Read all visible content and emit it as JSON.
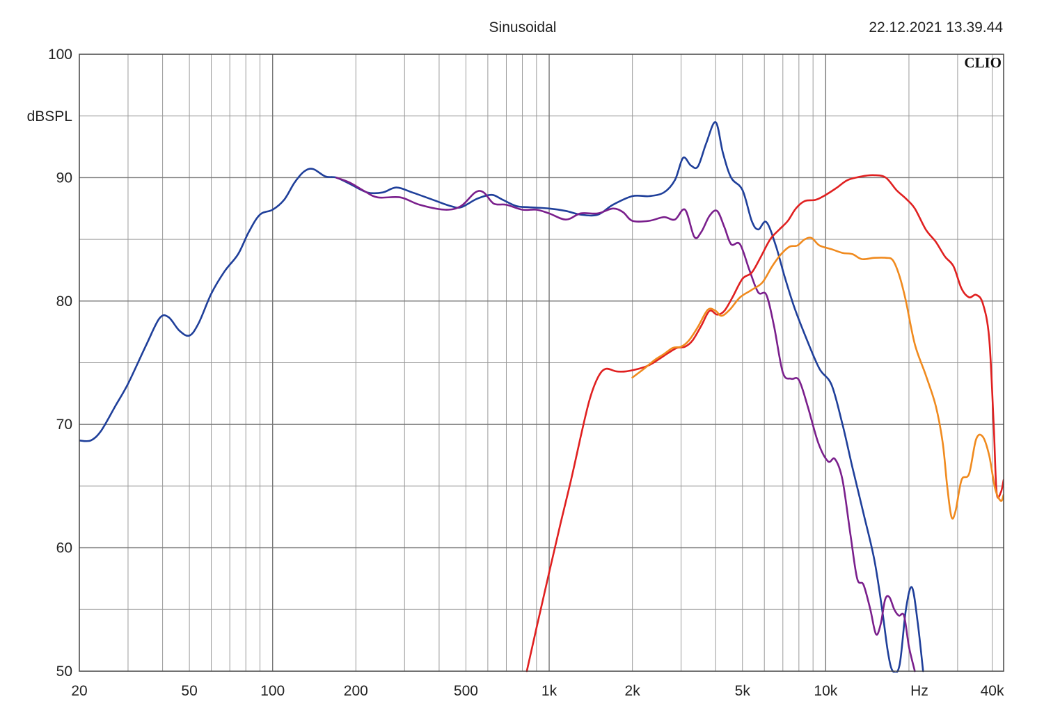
{
  "chart_data": {
    "type": "line",
    "title": "Sinusoidal",
    "timestamp": "22.12.2021 13.39.44",
    "brand": "CLIO",
    "ylabel": "dBSPL",
    "xunit": "Hz",
    "x_scale": "log",
    "xlim": [
      20,
      44000
    ],
    "ylim": [
      50,
      100
    ],
    "grid": true,
    "x_ticks": [
      {
        "value": 20,
        "label": "20"
      },
      {
        "value": 50,
        "label": "50"
      },
      {
        "value": 100,
        "label": "100"
      },
      {
        "value": 200,
        "label": "200"
      },
      {
        "value": 500,
        "label": "500"
      },
      {
        "value": 1000,
        "label": "1k"
      },
      {
        "value": 2000,
        "label": "2k"
      },
      {
        "value": 5000,
        "label": "5k"
      },
      {
        "value": 10000,
        "label": "10k"
      },
      {
        "value": 40000,
        "label": "40k"
      }
    ],
    "y_ticks": [
      {
        "value": 100,
        "label": "100"
      },
      {
        "value": 90,
        "label": "90"
      },
      {
        "value": 80,
        "label": "80"
      },
      {
        "value": 70,
        "label": "70"
      },
      {
        "value": 60,
        "label": "60"
      },
      {
        "value": 50,
        "label": "50"
      }
    ],
    "series": [
      {
        "color": "#1f3f9a",
        "points": [
          [
            20,
            68.7
          ],
          [
            22,
            68.7
          ],
          [
            24,
            69.5
          ],
          [
            27,
            71.5
          ],
          [
            30,
            73.3
          ],
          [
            35,
            76.5
          ],
          [
            39,
            78.6
          ],
          [
            42,
            78.7
          ],
          [
            46,
            77.6
          ],
          [
            50,
            77.2
          ],
          [
            54,
            78.2
          ],
          [
            60,
            80.6
          ],
          [
            67,
            82.4
          ],
          [
            75,
            83.8
          ],
          [
            82,
            85.6
          ],
          [
            90,
            87.0
          ],
          [
            100,
            87.4
          ],
          [
            110,
            88.2
          ],
          [
            120,
            89.6
          ],
          [
            130,
            90.5
          ],
          [
            140,
            90.7
          ],
          [
            155,
            90.1
          ],
          [
            170,
            90.0
          ],
          [
            190,
            89.5
          ],
          [
            220,
            88.8
          ],
          [
            250,
            88.8
          ],
          [
            280,
            89.2
          ],
          [
            320,
            88.8
          ],
          [
            380,
            88.2
          ],
          [
            440,
            87.7
          ],
          [
            480,
            87.6
          ],
          [
            550,
            88.3
          ],
          [
            620,
            88.6
          ],
          [
            680,
            88.2
          ],
          [
            760,
            87.7
          ],
          [
            850,
            87.6
          ],
          [
            1000,
            87.5
          ],
          [
            1150,
            87.3
          ],
          [
            1300,
            87.0
          ],
          [
            1500,
            87.0
          ],
          [
            1700,
            87.8
          ],
          [
            2000,
            88.5
          ],
          [
            2300,
            88.5
          ],
          [
            2600,
            88.8
          ],
          [
            2850,
            89.8
          ],
          [
            3050,
            91.6
          ],
          [
            3250,
            91.0
          ],
          [
            3450,
            90.9
          ],
          [
            3700,
            92.8
          ],
          [
            4000,
            94.5
          ],
          [
            4250,
            92.0
          ],
          [
            4550,
            90.0
          ],
          [
            5000,
            89.0
          ],
          [
            5400,
            86.5
          ],
          [
            5700,
            85.8
          ],
          [
            6100,
            86.4
          ],
          [
            6600,
            84.5
          ],
          [
            7100,
            82.0
          ],
          [
            7700,
            79.5
          ],
          [
            8500,
            77.0
          ],
          [
            9500,
            74.5
          ],
          [
            10500,
            73.2
          ],
          [
            11500,
            70.0
          ],
          [
            12500,
            66.5
          ],
          [
            13800,
            62.5
          ],
          [
            15000,
            59.0
          ],
          [
            16000,
            55.0
          ],
          [
            16800,
            51.5
          ],
          [
            17500,
            50.0
          ],
          [
            18500,
            50.5
          ],
          [
            19500,
            55.0
          ],
          [
            20500,
            56.8
          ],
          [
            21500,
            54.0
          ],
          [
            22500,
            50.0
          ]
        ]
      },
      {
        "color": "#7a1f8c",
        "points": [
          [
            170,
            90.0
          ],
          [
            190,
            89.6
          ],
          [
            215,
            88.9
          ],
          [
            240,
            88.4
          ],
          [
            290,
            88.4
          ],
          [
            340,
            87.8
          ],
          [
            420,
            87.4
          ],
          [
            480,
            87.7
          ],
          [
            540,
            88.8
          ],
          [
            580,
            88.8
          ],
          [
            630,
            87.9
          ],
          [
            700,
            87.8
          ],
          [
            800,
            87.4
          ],
          [
            900,
            87.4
          ],
          [
            1000,
            87.1
          ],
          [
            1150,
            86.6
          ],
          [
            1300,
            87.1
          ],
          [
            1500,
            87.1
          ],
          [
            1700,
            87.5
          ],
          [
            1850,
            87.2
          ],
          [
            2000,
            86.5
          ],
          [
            2300,
            86.5
          ],
          [
            2600,
            86.8
          ],
          [
            2850,
            86.6
          ],
          [
            3100,
            87.4
          ],
          [
            3350,
            85.2
          ],
          [
            3550,
            85.6
          ],
          [
            3800,
            86.9
          ],
          [
            4050,
            87.3
          ],
          [
            4300,
            86.0
          ],
          [
            4550,
            84.6
          ],
          [
            4900,
            84.6
          ],
          [
            5300,
            82.5
          ],
          [
            5700,
            80.7
          ],
          [
            6100,
            80.5
          ],
          [
            6500,
            78.0
          ],
          [
            7000,
            74.2
          ],
          [
            7500,
            73.7
          ],
          [
            8000,
            73.6
          ],
          [
            8600,
            71.5
          ],
          [
            9400,
            68.5
          ],
          [
            10200,
            67.0
          ],
          [
            10800,
            67.2
          ],
          [
            11500,
            65.5
          ],
          [
            12300,
            61.0
          ],
          [
            13000,
            57.5
          ],
          [
            13700,
            57.0
          ],
          [
            14500,
            55.0
          ],
          [
            15200,
            53.0
          ],
          [
            15800,
            53.8
          ],
          [
            16400,
            55.8
          ],
          [
            17000,
            56.0
          ],
          [
            17700,
            55.0
          ],
          [
            18400,
            54.5
          ],
          [
            19200,
            54.5
          ],
          [
            20000,
            52.0
          ],
          [
            21000,
            50.0
          ]
        ]
      },
      {
        "color": "#e02020",
        "points": [
          [
            830,
            50.0
          ],
          [
            900,
            53.5
          ],
          [
            1000,
            58.0
          ],
          [
            1100,
            62.0
          ],
          [
            1200,
            65.5
          ],
          [
            1300,
            69.0
          ],
          [
            1400,
            72.0
          ],
          [
            1500,
            73.8
          ],
          [
            1600,
            74.5
          ],
          [
            1750,
            74.3
          ],
          [
            1900,
            74.3
          ],
          [
            2100,
            74.5
          ],
          [
            2300,
            74.8
          ],
          [
            2500,
            75.3
          ],
          [
            2700,
            75.8
          ],
          [
            2900,
            76.2
          ],
          [
            3100,
            76.3
          ],
          [
            3300,
            76.8
          ],
          [
            3550,
            78.0
          ],
          [
            3800,
            79.2
          ],
          [
            4050,
            78.9
          ],
          [
            4300,
            79.2
          ],
          [
            4600,
            80.3
          ],
          [
            5000,
            81.8
          ],
          [
            5400,
            82.3
          ],
          [
            5800,
            83.5
          ],
          [
            6300,
            85.0
          ],
          [
            6800,
            85.8
          ],
          [
            7300,
            86.5
          ],
          [
            7800,
            87.5
          ],
          [
            8400,
            88.1
          ],
          [
            9200,
            88.2
          ],
          [
            10000,
            88.6
          ],
          [
            11000,
            89.2
          ],
          [
            12000,
            89.8
          ],
          [
            13500,
            90.1
          ],
          [
            15000,
            90.2
          ],
          [
            16500,
            90.0
          ],
          [
            18000,
            89.0
          ],
          [
            19500,
            88.3
          ],
          [
            21000,
            87.5
          ],
          [
            23000,
            85.8
          ],
          [
            25000,
            84.8
          ],
          [
            27000,
            83.6
          ],
          [
            29000,
            82.8
          ],
          [
            31000,
            81.0
          ],
          [
            33000,
            80.3
          ],
          [
            35000,
            80.5
          ],
          [
            37000,
            79.8
          ],
          [
            39000,
            77.0
          ],
          [
            40500,
            70.0
          ],
          [
            41500,
            64.5
          ],
          [
            43000,
            64.5
          ],
          [
            44000,
            65.5
          ]
        ]
      },
      {
        "color": "#f08a1e",
        "points": [
          [
            2000,
            73.8
          ],
          [
            2200,
            74.5
          ],
          [
            2400,
            75.2
          ],
          [
            2600,
            75.7
          ],
          [
            2800,
            76.2
          ],
          [
            3000,
            76.3
          ],
          [
            3200,
            76.8
          ],
          [
            3450,
            77.9
          ],
          [
            3750,
            79.3
          ],
          [
            4000,
            79.2
          ],
          [
            4200,
            78.8
          ],
          [
            4500,
            79.3
          ],
          [
            4900,
            80.3
          ],
          [
            5400,
            80.9
          ],
          [
            5900,
            81.5
          ],
          [
            6400,
            82.8
          ],
          [
            6900,
            83.8
          ],
          [
            7400,
            84.4
          ],
          [
            7900,
            84.5
          ],
          [
            8400,
            85.0
          ],
          [
            8900,
            85.1
          ],
          [
            9500,
            84.5
          ],
          [
            10500,
            84.2
          ],
          [
            11500,
            83.9
          ],
          [
            12500,
            83.8
          ],
          [
            13500,
            83.4
          ],
          [
            15000,
            83.5
          ],
          [
            16500,
            83.5
          ],
          [
            17500,
            83.3
          ],
          [
            18500,
            82.0
          ],
          [
            19500,
            80.0
          ],
          [
            21000,
            76.5
          ],
          [
            23000,
            74.0
          ],
          [
            25000,
            71.5
          ],
          [
            26500,
            68.5
          ],
          [
            27500,
            65.0
          ],
          [
            28500,
            62.5
          ],
          [
            29500,
            63.0
          ],
          [
            31000,
            65.5
          ],
          [
            33000,
            66.0
          ],
          [
            35000,
            68.8
          ],
          [
            37000,
            69.0
          ],
          [
            39000,
            67.5
          ],
          [
            41000,
            64.8
          ],
          [
            43000,
            63.8
          ],
          [
            44000,
            64.3
          ]
        ]
      }
    ]
  }
}
